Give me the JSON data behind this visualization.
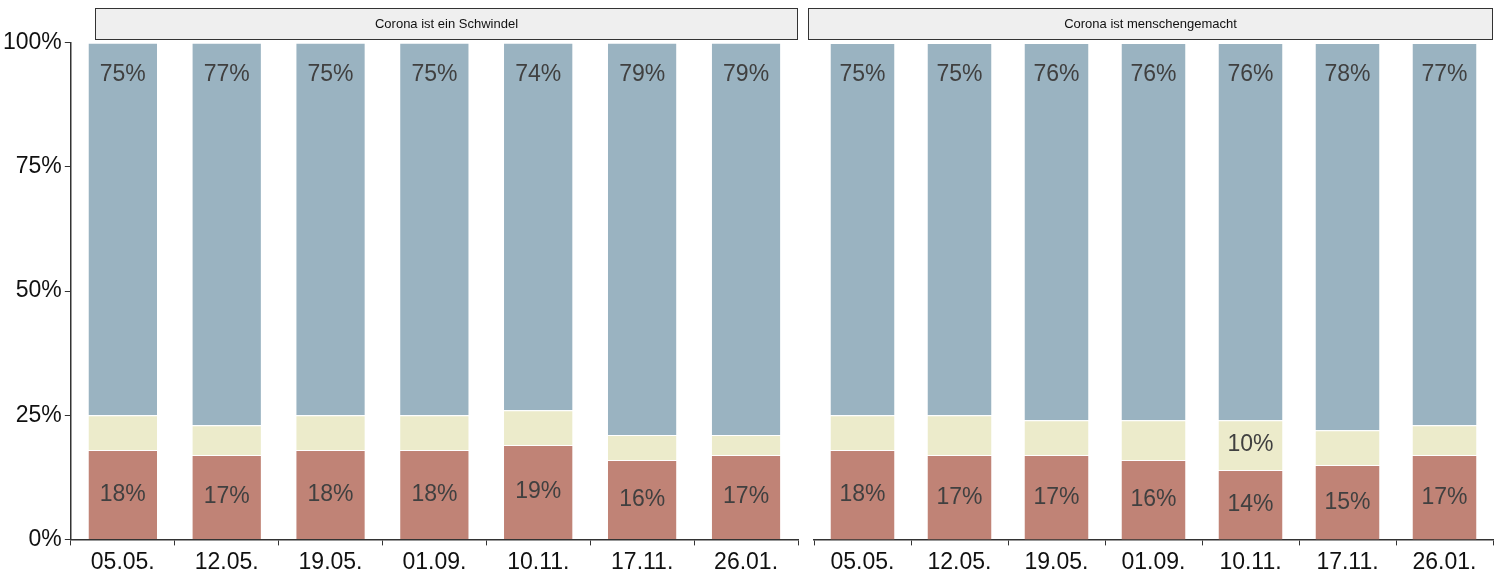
{
  "chart_data": [
    {
      "type": "bar",
      "title": "Corona ist ein Schwindel",
      "stacked": true,
      "categories": [
        "05.05.",
        "12.05.",
        "19.05.",
        "01.09.",
        "10.11.",
        "17.11.",
        "26.01."
      ],
      "ylim": [
        0,
        100
      ],
      "yticks": [
        {
          "value": 0,
          "label": "0%"
        },
        {
          "value": 25,
          "label": "25%"
        },
        {
          "value": 50,
          "label": "50%"
        },
        {
          "value": 75,
          "label": "75%"
        },
        {
          "value": 100,
          "label": "100%"
        }
      ],
      "series": [
        {
          "color": "#c08376",
          "values": [
            18,
            17,
            18,
            18,
            19,
            16,
            17
          ],
          "value_labels": [
            "18%",
            "17%",
            "18%",
            "18%",
            "19%",
            "16%",
            "17%"
          ]
        },
        {
          "color": "#ecebcb",
          "values": [
            7,
            6,
            7,
            7,
            7,
            5,
            4
          ]
        },
        {
          "color": "#9ab3c1",
          "values": [
            75,
            77,
            75,
            75,
            74,
            79,
            79
          ],
          "value_labels": [
            "75%",
            "77%",
            "75%",
            "75%",
            "74%",
            "79%",
            "79%"
          ]
        }
      ]
    },
    {
      "type": "bar",
      "title": "Corona ist menschengemacht",
      "stacked": true,
      "tick_labels": "x",
      "categories": [
        "05.05.",
        "12.05.",
        "19.05.",
        "01.09.",
        "10.11.",
        "17.11.",
        "26.01."
      ],
      "ylim": [
        0,
        100
      ],
      "series": [
        {
          "color": "#c08376",
          "values": [
            18,
            17,
            17,
            16,
            14,
            15,
            17
          ],
          "value_labels": [
            "18%",
            "17%",
            "17%",
            "16%",
            "14%",
            "15%",
            "17%"
          ]
        },
        {
          "color": "#ecebcb",
          "values": [
            7,
            8,
            7,
            8,
            10,
            7,
            6
          ],
          "value_labels": [
            null,
            null,
            null,
            null,
            "10%",
            null,
            null
          ]
        },
        {
          "color": "#9ab3c1",
          "values": [
            75,
            75,
            76,
            76,
            76,
            78,
            77
          ],
          "value_labels": [
            "75%",
            "75%",
            "76%",
            "76%",
            "76%",
            "78%",
            "77%"
          ]
        }
      ]
    }
  ]
}
